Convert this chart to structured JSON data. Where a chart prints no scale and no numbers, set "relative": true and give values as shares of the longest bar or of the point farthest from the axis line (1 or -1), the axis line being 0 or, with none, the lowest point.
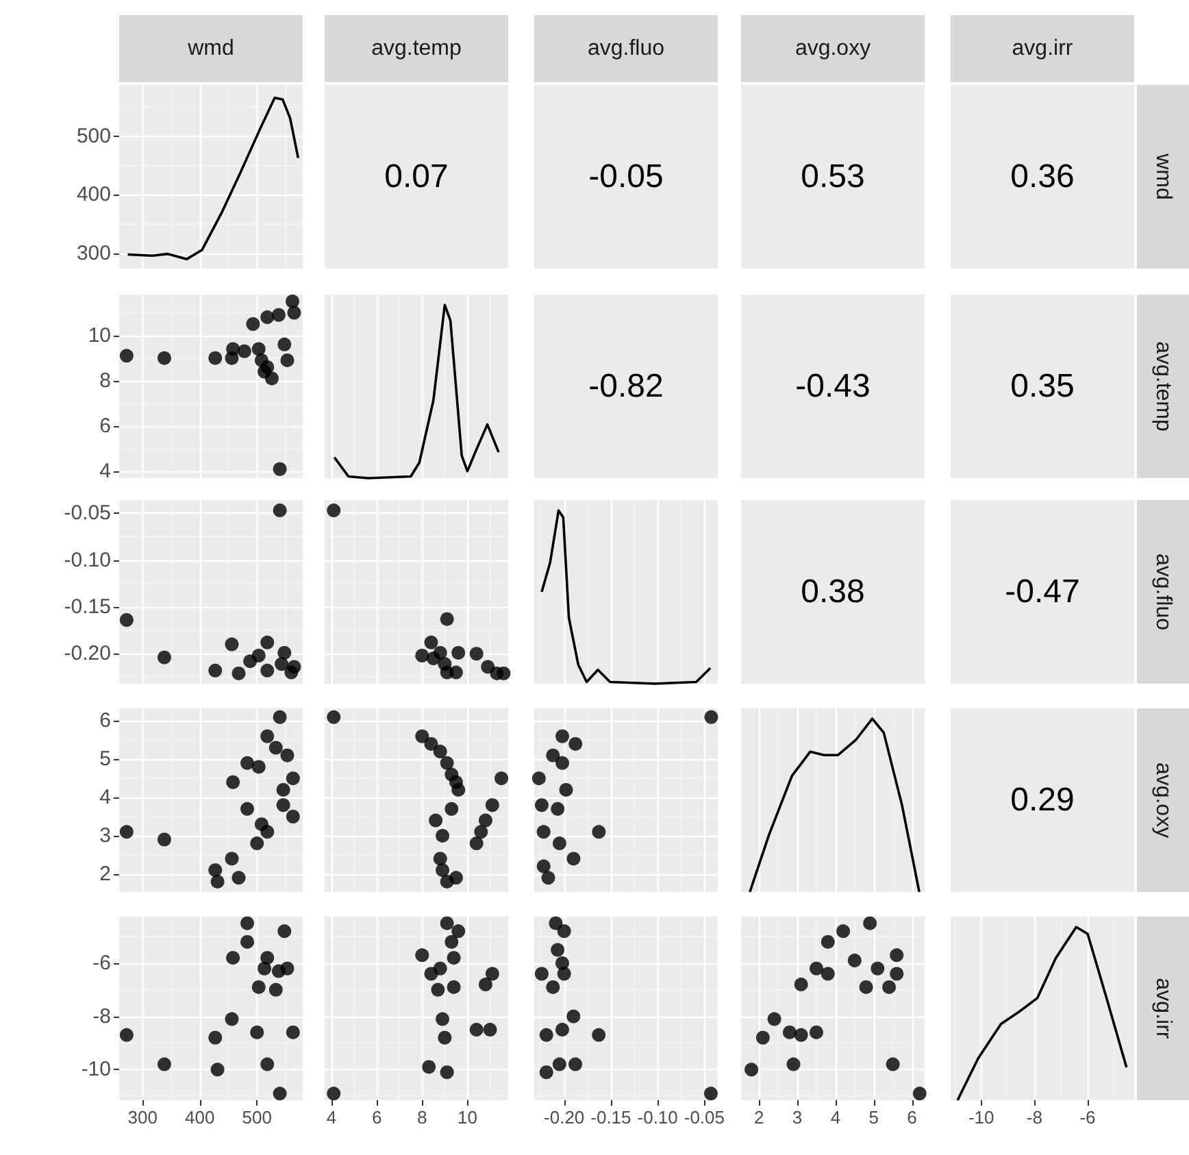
{
  "chart_data": [
    {
      "type": "line",
      "title": "wmd",
      "xlim": [
        259,
        580
      ],
      "ylim": [
        274,
        588
      ],
      "yticks": [
        300,
        400,
        500
      ],
      "grid": true,
      "tick_labels": "y",
      "x": [
        274,
        317,
        344,
        377,
        404,
        438,
        471,
        505,
        531,
        545,
        558,
        572
      ],
      "series": [
        {
          "color": "#000000",
          "values": [
            298,
            296,
            299,
            290,
            306,
            369,
            438,
            512,
            566,
            563,
            531,
            463
          ]
        }
      ]
    },
    {
      "type": "other",
      "title": "avg.temp",
      "annotations": [
        "0.07"
      ]
    },
    {
      "type": "other",
      "title": "avg.fluo",
      "annotations": [
        "-0.05"
      ]
    },
    {
      "type": "other",
      "title": "avg.oxy",
      "annotations": [
        "0.53"
      ]
    },
    {
      "type": "other",
      "title": "avg.irr",
      "y2label": "wmd",
      "annotations": [
        "0.36"
      ]
    },
    {
      "type": "scatter",
      "marker": "circle",
      "xlim": [
        259,
        580
      ],
      "ylim": [
        3.7,
        11.8
      ],
      "yticks": [
        4,
        6,
        8,
        10
      ],
      "grid": true,
      "tick_labels": "y",
      "x": [
        272,
        338,
        427,
        456,
        458,
        478,
        503,
        493,
        518,
        538,
        562,
        565,
        548,
        518,
        513,
        526,
        553,
        508,
        540
      ],
      "series": [
        {
          "color": "#000000",
          "values": [
            9.1,
            9.0,
            9.0,
            9.0,
            9.4,
            9.3,
            9.4,
            10.5,
            10.8,
            10.9,
            11.5,
            11.0,
            9.6,
            8.6,
            8.4,
            8.1,
            8.9,
            8.9,
            4.1
          ]
        }
      ]
    },
    {
      "type": "line",
      "relative": true,
      "xlim": [
        3.7,
        11.8
      ],
      "grid": true,
      "tick_labels": false,
      "x": [
        4.13,
        4.75,
        5.63,
        7.5,
        7.88,
        8.5,
        9.0,
        9.25,
        9.75,
        10.0,
        10.38,
        10.88,
        11.38
      ],
      "series": [
        {
          "color": "#000000",
          "values": [
            0.12,
            0.01,
            0,
            0.01,
            0.09,
            0.45,
            1,
            0.91,
            0.13,
            0.04,
            0.16,
            0.31,
            0.15
          ]
        }
      ]
    },
    {
      "type": "other",
      "annotations": [
        "-0.82"
      ]
    },
    {
      "type": "other",
      "annotations": [
        "-0.43"
      ]
    },
    {
      "type": "other",
      "y2label": "avg.temp",
      "annotations": [
        "0.35"
      ]
    },
    {
      "type": "scatter",
      "marker": "circle",
      "xlim": [
        259,
        580
      ],
      "ylim": [
        -0.232,
        -0.036
      ],
      "yticks": [
        {
          "value": -0.2,
          "label": "-0.20"
        },
        -0.15,
        {
          "value": -0.1,
          "label": "-0.10"
        },
        -0.05
      ],
      "grid": true,
      "tick_labels": "y",
      "x": [
        540,
        272,
        338,
        427,
        456,
        468,
        488,
        518,
        548,
        518,
        565,
        503,
        543,
        560
      ],
      "series": [
        {
          "color": "#000000",
          "values": [
            -0.047,
            -0.164,
            -0.204,
            -0.218,
            -0.19,
            -0.221,
            -0.208,
            -0.188,
            -0.199,
            -0.218,
            -0.214,
            -0.202,
            -0.211,
            -0.22
          ]
        }
      ]
    },
    {
      "type": "scatter",
      "marker": "circle",
      "xlim": [
        3.7,
        11.8
      ],
      "ylim": [
        -0.232,
        -0.036
      ],
      "grid": true,
      "tick_labels": false,
      "x": [
        4.1,
        9.1,
        8.0,
        8.4,
        8.8,
        9.0,
        9.5,
        9.6,
        9.1,
        8.5,
        10.4,
        10.9,
        11.3,
        11.6
      ],
      "series": [
        {
          "color": "#000000",
          "values": [
            -0.047,
            -0.163,
            -0.202,
            -0.188,
            -0.199,
            -0.211,
            -0.22,
            -0.199,
            -0.22,
            -0.205,
            -0.2,
            -0.214,
            -0.221,
            -0.221
          ]
        }
      ]
    },
    {
      "type": "line",
      "relative": true,
      "xlim": [
        -0.232,
        -0.036
      ],
      "grid": true,
      "tick_labels": false,
      "x": [
        -0.224,
        -0.215,
        -0.206,
        -0.201,
        -0.195,
        -0.185,
        -0.176,
        -0.164,
        -0.151,
        -0.103,
        -0.059,
        -0.044
      ],
      "series": [
        {
          "color": "#000000",
          "values": [
            0.53,
            0.7,
            1,
            0.96,
            0.38,
            0.11,
            0.01,
            0.08,
            0.01,
            0,
            0.01,
            0.09
          ]
        }
      ]
    },
    {
      "type": "other",
      "annotations": [
        "0.38"
      ]
    },
    {
      "type": "other",
      "y2label": "avg.fluo",
      "annotations": [
        "-0.47"
      ]
    },
    {
      "type": "scatter",
      "marker": "circle",
      "xlim": [
        259,
        580
      ],
      "ylim": [
        1.53,
        6.33
      ],
      "yticks": [
        2,
        3,
        4,
        5,
        6
      ],
      "grid": true,
      "tick_labels": "y",
      "x": [
        540,
        272,
        338,
        427,
        431,
        456,
        468,
        458,
        483,
        503,
        518,
        533,
        553,
        563,
        546,
        546,
        563,
        483,
        508,
        518,
        500
      ],
      "series": [
        {
          "color": "#000000",
          "values": [
            6.1,
            3.1,
            2.9,
            2.1,
            1.8,
            2.4,
            1.9,
            4.4,
            4.9,
            4.8,
            5.6,
            5.3,
            5.1,
            4.5,
            4.2,
            3.8,
            3.5,
            3.7,
            3.3,
            3.1,
            2.8
          ]
        }
      ]
    },
    {
      "type": "scatter",
      "marker": "circle",
      "xlim": [
        3.7,
        11.8
      ],
      "ylim": [
        1.53,
        6.33
      ],
      "grid": true,
      "tick_labels": false,
      "x": [
        4.1,
        8.0,
        8.4,
        8.8,
        9.1,
        9.3,
        9.5,
        9.6,
        9.3,
        8.6,
        8.9,
        8.8,
        8.9,
        9.5,
        9.1,
        11.5,
        11.1,
        10.8,
        10.6,
        10.4
      ],
      "series": [
        {
          "color": "#000000",
          "values": [
            6.1,
            5.6,
            5.4,
            5.2,
            4.9,
            4.6,
            4.4,
            4.2,
            3.7,
            3.4,
            3.0,
            2.4,
            2.1,
            1.9,
            1.8,
            4.5,
            3.8,
            3.4,
            3.1,
            2.8
          ]
        }
      ]
    },
    {
      "type": "scatter",
      "marker": "circle",
      "xlim": [
        -0.232,
        -0.036
      ],
      "ylim": [
        1.53,
        6.33
      ],
      "grid": true,
      "tick_labels": false,
      "x": [
        -0.043,
        -0.202,
        -0.188,
        -0.212,
        -0.202,
        -0.227,
        -0.198,
        -0.224,
        -0.207,
        -0.222,
        -0.205,
        -0.19,
        -0.163,
        -0.222,
        -0.217
      ],
      "series": [
        {
          "color": "#000000",
          "values": [
            6.1,
            5.6,
            5.4,
            5.1,
            4.9,
            4.5,
            4.2,
            3.8,
            3.7,
            3.1,
            2.8,
            2.4,
            3.1,
            2.2,
            1.9
          ]
        }
      ]
    },
    {
      "type": "line",
      "relative": true,
      "xlim": [
        1.53,
        6.33
      ],
      "grid": true,
      "tick_labels": false,
      "x": [
        1.76,
        2.26,
        2.86,
        3.34,
        3.7,
        4.06,
        4.54,
        4.96,
        5.26,
        5.74,
        6.19
      ],
      "series": [
        {
          "color": "#000000",
          "values": [
            0,
            0.33,
            0.67,
            0.81,
            0.79,
            0.79,
            0.88,
            1,
            0.92,
            0.5,
            0
          ]
        }
      ]
    },
    {
      "type": "other",
      "y2label": "avg.oxy",
      "annotations": [
        "0.29"
      ]
    },
    {
      "type": "scatter",
      "marker": "circle",
      "xlim": [
        259,
        580
      ],
      "xticks": [
        300,
        400,
        500
      ],
      "ylim": [
        -11.15,
        -4.25
      ],
      "yticks": [
        -10,
        -8,
        -6
      ],
      "grid": true,
      "x": [
        483,
        483,
        548,
        458,
        518,
        513,
        538,
        553,
        503,
        533,
        456,
        272,
        427,
        500,
        563,
        338,
        431,
        518,
        540
      ],
      "series": [
        {
          "color": "#000000",
          "values": [
            -4.5,
            -5.2,
            -4.8,
            -5.8,
            -5.8,
            -6.2,
            -6.3,
            -6.2,
            -6.9,
            -7.0,
            -8.1,
            -8.7,
            -8.8,
            -8.6,
            -8.6,
            -9.8,
            -10.0,
            -9.8,
            -10.9
          ]
        }
      ]
    },
    {
      "type": "scatter",
      "marker": "circle",
      "xlim": [
        3.7,
        11.8
      ],
      "xticks": [
        4,
        6,
        8,
        10
      ],
      "ylim": [
        -11.15,
        -4.25
      ],
      "grid": true,
      "tick_labels": "x",
      "x": [
        4.1,
        9.1,
        9.6,
        9.3,
        8.0,
        9.4,
        8.4,
        8.8,
        8.7,
        9.4,
        10.8,
        11.1,
        8.9,
        9.0,
        10.4,
        11.0,
        8.3,
        9.1
      ],
      "series": [
        {
          "color": "#000000",
          "values": [
            -10.9,
            -4.5,
            -4.8,
            -5.2,
            -5.7,
            -5.8,
            -6.4,
            -6.2,
            -7.0,
            -6.9,
            -6.8,
            -6.4,
            -8.1,
            -8.8,
            -8.5,
            -8.5,
            -9.9,
            -10.1
          ]
        }
      ]
    },
    {
      "type": "scatter",
      "marker": "circle",
      "xlim": [
        -0.232,
        -0.036
      ],
      "xticks": [
        {
          "value": -0.2,
          "label": "-0.20"
        },
        -0.15,
        {
          "value": -0.1,
          "label": "-0.10"
        },
        -0.05
      ],
      "ylim": [
        -11.15,
        -4.25
      ],
      "grid": true,
      "tick_labels": "x",
      "x": [
        -0.209,
        -0.2,
        -0.207,
        -0.202,
        -0.224,
        -0.212,
        -0.2,
        -0.19,
        -0.219,
        -0.202,
        -0.163,
        -0.219,
        -0.205,
        -0.188,
        -0.043
      ],
      "series": [
        {
          "color": "#000000",
          "values": [
            -4.5,
            -4.8,
            -5.5,
            -6.0,
            -6.4,
            -6.9,
            -6.4,
            -8.0,
            -8.7,
            -8.5,
            -8.7,
            -10.1,
            -9.8,
            -9.8,
            -10.9
          ]
        }
      ]
    },
    {
      "type": "scatter",
      "marker": "circle",
      "xlim": [
        1.53,
        6.33
      ],
      "xticks": [
        2,
        3,
        4,
        5,
        6
      ],
      "ylim": [
        -11.15,
        -4.25
      ],
      "grid": true,
      "tick_labels": "x",
      "x": [
        1.8,
        2.1,
        2.4,
        2.8,
        3.1,
        3.5,
        2.9,
        3.1,
        3.5,
        3.8,
        3.8,
        4.2,
        4.5,
        4.9,
        4.8,
        5.1,
        5.4,
        5.6,
        5.6,
        5.5,
        6.2
      ],
      "series": [
        {
          "color": "#000000",
          "values": [
            -10.0,
            -8.8,
            -8.1,
            -8.6,
            -8.7,
            -8.6,
            -9.8,
            -6.8,
            -6.2,
            -6.4,
            -5.2,
            -4.8,
            -5.9,
            -4.5,
            -6.9,
            -6.2,
            -6.9,
            -5.7,
            -6.4,
            -9.8,
            -10.9
          ]
        }
      ]
    },
    {
      "type": "line",
      "relative": true,
      "y2label": "avg.irr",
      "xlim": [
        -11.15,
        -4.25
      ],
      "xticks": [
        -10,
        -8,
        -6
      ],
      "grid": true,
      "tick_labels": "x",
      "x": [
        -10.89,
        -10.12,
        -9.26,
        -8.58,
        -7.89,
        -7.2,
        -6.43,
        -6.0,
        -5.31,
        -4.54
      ],
      "series": [
        {
          "color": "#000000",
          "values": [
            0,
            0.24,
            0.44,
            0.51,
            0.59,
            0.82,
            1,
            0.96,
            0.6,
            0.19
          ]
        }
      ]
    }
  ]
}
